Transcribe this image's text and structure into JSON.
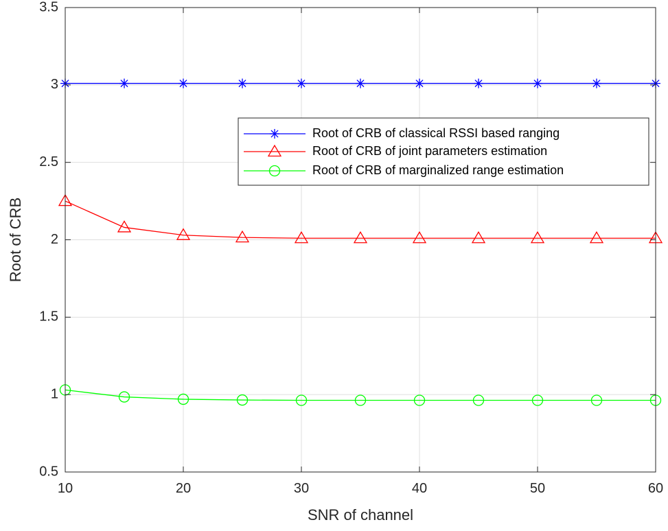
{
  "chart_data": {
    "type": "line",
    "title": "",
    "xlabel": "SNR of channel",
    "ylabel": "Root of CRB",
    "xlim": [
      10,
      60
    ],
    "ylim": [
      0.5,
      3.5
    ],
    "xticks": [
      10,
      20,
      30,
      40,
      50,
      60
    ],
    "yticks": [
      0.5,
      1,
      1.5,
      2,
      2.5,
      3,
      3.5
    ],
    "xtick_labels": [
      "10",
      "20",
      "30",
      "40",
      "50",
      "60"
    ],
    "ytick_labels": [
      "0.5",
      "1",
      "1.5",
      "2",
      "2.5",
      "3",
      "3.5"
    ],
    "grid": true,
    "legend_position": "upper-right",
    "x": [
      10,
      15,
      20,
      25,
      30,
      35,
      40,
      45,
      50,
      55,
      60
    ],
    "series": [
      {
        "name": "Root of CRB of classical RSSI based ranging",
        "color": "#0000ff",
        "marker": "asterisk",
        "values": [
          3.01,
          3.01,
          3.01,
          3.01,
          3.01,
          3.01,
          3.01,
          3.01,
          3.01,
          3.01,
          3.01
        ]
      },
      {
        "name": "Root of CRB of joint parameters estimation",
        "color": "#ff0000",
        "marker": "triangle",
        "values": [
          2.25,
          2.08,
          2.03,
          2.015,
          2.01,
          2.01,
          2.01,
          2.01,
          2.01,
          2.01,
          2.01
        ]
      },
      {
        "name": "Root of CRB of marginalized range estimation",
        "color": "#00ff00",
        "marker": "circle",
        "values": [
          1.03,
          0.985,
          0.97,
          0.965,
          0.963,
          0.963,
          0.963,
          0.963,
          0.963,
          0.963,
          0.963
        ]
      }
    ]
  }
}
